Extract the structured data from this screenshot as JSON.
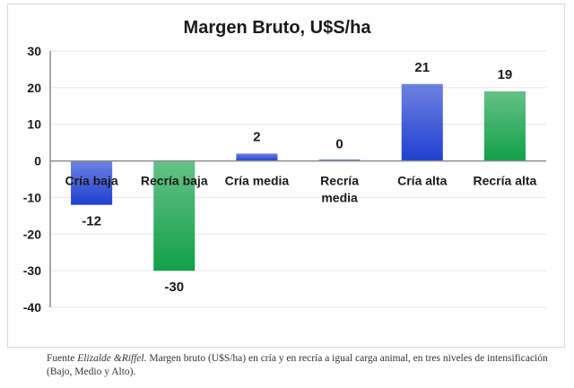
{
  "chart_data": {
    "type": "bar",
    "title": "Margen Bruto, U$S/ha",
    "xlabel": "",
    "ylabel": "",
    "categories": [
      "Cría baja",
      "Recría baja",
      "Cría media",
      "Recría\nmedia",
      "Cría alta",
      "Recría alta"
    ],
    "values": [
      -12,
      -30,
      2,
      0,
      21,
      19
    ],
    "data_labels": [
      "-12",
      "-30",
      "2",
      "0",
      "21",
      "19"
    ],
    "ylim": [
      -40,
      30
    ],
    "yticks": [
      30,
      20,
      10,
      0,
      -10,
      -20,
      -30,
      -40
    ],
    "grid": true,
    "legend": "none",
    "bar_colors": [
      "#1f3fd1",
      "#12a048",
      "#1f3fd1",
      "#1f3fd1",
      "#1f3fd1",
      "#12a048"
    ],
    "colors": {
      "cria": "#1f3fd1",
      "recria": "#12a048",
      "grid": "#e6e6e6",
      "axis": "#8c8c8c"
    }
  },
  "caption": {
    "prefix": "Fuente ",
    "authors": "Elizalde &Riffel.",
    "text": " Margen bruto (U$S/ha) en cría y en recría a igual carga animal, en tres niveles de intensificación (Bajo, Medio y Alto)."
  }
}
